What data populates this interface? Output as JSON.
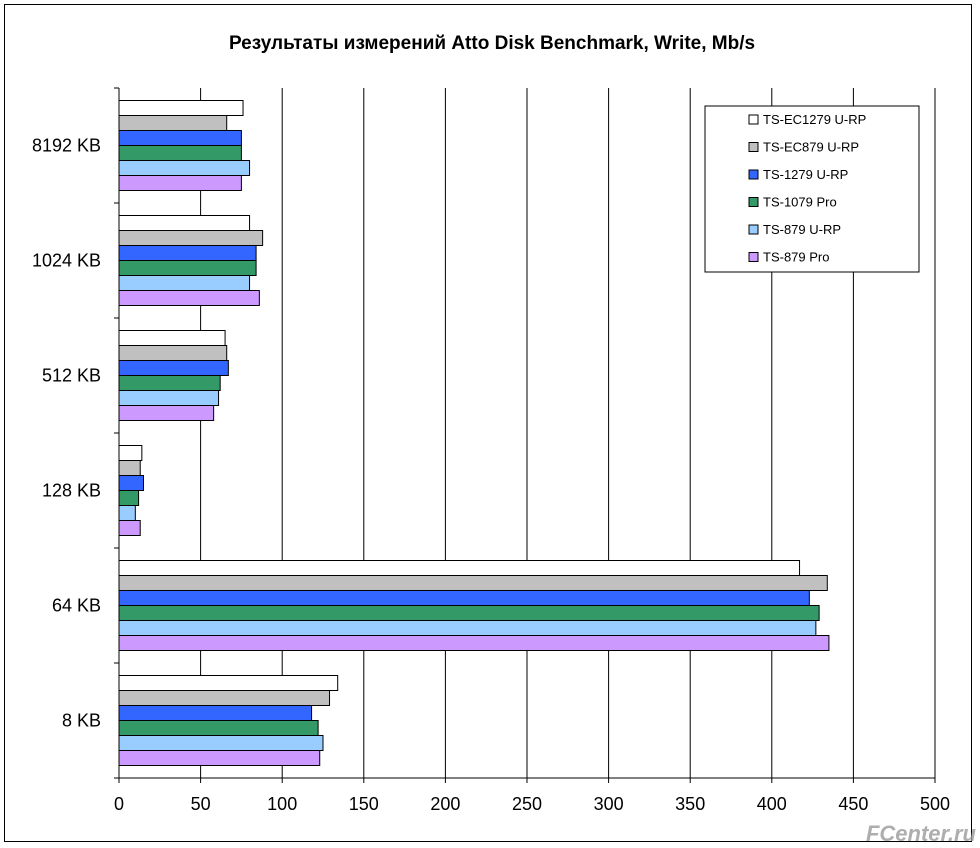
{
  "chart_data": {
    "type": "bar",
    "orientation": "horizontal",
    "title": "Результаты измерений Atto Disk Benchmark, Write, Mb/s",
    "xlabel": "",
    "ylabel": "",
    "xlim": [
      0,
      500
    ],
    "xticks": [
      0,
      50,
      100,
      150,
      200,
      250,
      300,
      350,
      400,
      450,
      500
    ],
    "grid": "vertical",
    "legend_position": "top-right",
    "categories": [
      "8192 KB",
      "1024 KB",
      "512 KB",
      "128 KB",
      "64 KB",
      "8 KB"
    ],
    "series": [
      {
        "name": "TS-EC1279 U-RP",
        "color": "#ffffff",
        "values": [
          76,
          80,
          65,
          14,
          417,
          134
        ]
      },
      {
        "name": "TS-EC879 U-RP",
        "color": "#c0c0c0",
        "values": [
          66,
          88,
          66,
          13,
          434,
          129
        ]
      },
      {
        "name": "TS-1279 U-RP",
        "color": "#3366ff",
        "values": [
          75,
          84,
          67,
          15,
          423,
          118
        ]
      },
      {
        "name": "TS-1079 Pro",
        "color": "#339966",
        "values": [
          75,
          84,
          62,
          12,
          429,
          122
        ]
      },
      {
        "name": "TS-879 U-RP",
        "color": "#99ccff",
        "values": [
          80,
          80,
          61,
          10,
          427,
          125
        ]
      },
      {
        "name": "TS-879 Pro",
        "color": "#cc99ff",
        "values": [
          75,
          86,
          58,
          13,
          435,
          123
        ]
      }
    ]
  },
  "watermark": "FCenter.ru"
}
